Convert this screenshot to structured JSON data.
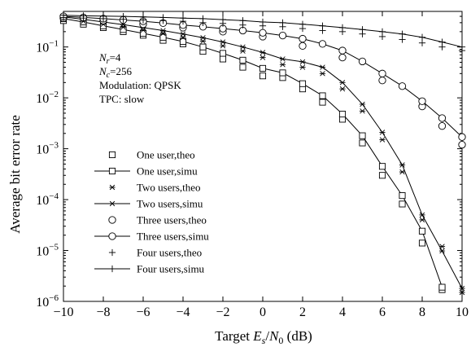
{
  "chart_data": {
    "type": "line",
    "xlabel_parts": {
      "pre": "Target ",
      "E": "E",
      "s": "s",
      "slash": "/",
      "N": "N",
      "zero": "0",
      "post": " (dB)"
    },
    "ylabel": "Average bit error rate",
    "xlim": [
      -10,
      10
    ],
    "ylim": [
      1e-06,
      0.5
    ],
    "yscale": "log",
    "grid": false,
    "legend_position": "lower-left",
    "x_ticks": [
      "−10",
      "−8",
      "−6",
      "−4",
      "−2",
      "0",
      "2",
      "4",
      "6",
      "8",
      "10"
    ],
    "y_ticks": [
      {
        "base": "10",
        "exp": "−1",
        "value": 0.1
      },
      {
        "base": "10",
        "exp": "−2",
        "value": 0.01
      },
      {
        "base": "10",
        "exp": "−3",
        "value": 0.001
      },
      {
        "base": "10",
        "exp": "−4",
        "value": 0.0001
      },
      {
        "base": "10",
        "exp": "−5",
        "value": 1e-05
      },
      {
        "base": "10",
        "exp": "−6",
        "value": 1e-06
      }
    ],
    "annotation": {
      "nr": {
        "N": "N",
        "sub": "r",
        "val": "=4"
      },
      "nc": {
        "N": "N",
        "sub": "c",
        "val": "=256"
      },
      "modulation": "Modulation: QPSK",
      "tpc": "TPC: slow"
    },
    "series": [
      {
        "name": "One user,theo",
        "marker": "square",
        "line": false,
        "x": [
          -10,
          -9,
          -8,
          -7,
          -6,
          -5,
          -4,
          -3,
          -2,
          -1,
          0,
          1,
          2,
          3,
          4,
          5,
          6,
          7,
          8,
          9
        ],
        "y": [
          0.33,
          0.28,
          0.24,
          0.2,
          0.17,
          0.135,
          0.115,
          0.082,
          0.058,
          0.04,
          0.027,
          0.025,
          0.015,
          0.0082,
          0.0038,
          0.0013,
          0.0003,
          8.2e-05,
          1.4e-05,
          1.7e-06
        ]
      },
      {
        "name": "One user,simu",
        "marker": "square",
        "line": true,
        "x": [
          -10,
          -9,
          -8,
          -7,
          -6,
          -5,
          -4,
          -3,
          -2,
          -1,
          0,
          1,
          2,
          3,
          4,
          5,
          6,
          7,
          8,
          9
        ],
        "y": [
          0.36,
          0.31,
          0.26,
          0.22,
          0.185,
          0.155,
          0.128,
          0.1,
          0.075,
          0.055,
          0.038,
          0.031,
          0.019,
          0.011,
          0.0048,
          0.0018,
          0.00045,
          0.00012,
          2.4e-05,
          1.9e-06
        ]
      },
      {
        "name": "Two users,theo",
        "marker": "asterisk",
        "line": false,
        "x": [
          -10,
          -9,
          -8,
          -7,
          -6,
          -5,
          -4,
          -3,
          -2,
          -1,
          0,
          1,
          2,
          3,
          4,
          5,
          6,
          7,
          8,
          9,
          10
        ],
        "y": [
          0.36,
          0.32,
          0.28,
          0.245,
          0.215,
          0.185,
          0.155,
          0.13,
          0.105,
          0.083,
          0.062,
          0.045,
          0.04,
          0.03,
          0.015,
          0.0055,
          0.0015,
          0.00035,
          4e-05,
          1.2e-05,
          1.5e-06
        ]
      },
      {
        "name": "Two users,simu",
        "marker": "asterisk",
        "line": true,
        "x": [
          -10,
          -9,
          -8,
          -7,
          -6,
          -5,
          -4,
          -3,
          -2,
          -1,
          0,
          1,
          2,
          3,
          4,
          5,
          6,
          7,
          8,
          9,
          10
        ],
        "y": [
          0.39,
          0.35,
          0.31,
          0.275,
          0.24,
          0.21,
          0.18,
          0.152,
          0.125,
          0.1,
          0.078,
          0.058,
          0.051,
          0.04,
          0.02,
          0.0075,
          0.0021,
          0.00048,
          5e-05,
          9.8e-06,
          1.8e-06
        ]
      },
      {
        "name": "Three users,theo",
        "marker": "circle",
        "line": false,
        "x": [
          -10,
          -8,
          -6,
          -4,
          -2,
          0,
          2,
          4,
          6,
          8,
          9,
          10
        ],
        "y": [
          0.37,
          0.33,
          0.28,
          0.24,
          0.2,
          0.16,
          0.105,
          0.062,
          0.022,
          0.0068,
          0.0028,
          0.0012
        ]
      },
      {
        "name": "Three users,simu",
        "marker": "circle",
        "line": true,
        "x": [
          -10,
          -9,
          -8,
          -7,
          -6,
          -5,
          -4,
          -3,
          -2,
          -1,
          0,
          1,
          2,
          3,
          4,
          5,
          6,
          7,
          8,
          9,
          10
        ],
        "y": [
          0.4,
          0.38,
          0.36,
          0.34,
          0.32,
          0.295,
          0.27,
          0.25,
          0.23,
          0.21,
          0.19,
          0.168,
          0.145,
          0.115,
          0.085,
          0.052,
          0.03,
          0.017,
          0.0086,
          0.004,
          0.0017
        ]
      },
      {
        "name": "Four users,theo",
        "marker": "plus",
        "line": false,
        "x": [
          -10,
          -9,
          -8,
          -7,
          -6,
          -5,
          -4,
          -3,
          -2,
          -1,
          0,
          1,
          2,
          3,
          4,
          5,
          6,
          7,
          8,
          9,
          10
        ],
        "y": [
          0.38,
          0.37,
          0.36,
          0.35,
          0.34,
          0.33,
          0.32,
          0.3,
          0.29,
          0.27,
          0.26,
          0.25,
          0.23,
          0.21,
          0.2,
          0.18,
          0.16,
          0.14,
          0.12,
          0.1,
          0.085
        ]
      },
      {
        "name": "Four users,simu",
        "marker": "plus",
        "line": true,
        "x": [
          -10,
          -9,
          -8,
          -7,
          -6,
          -5,
          -4,
          -3,
          -2,
          -1,
          0,
          1,
          2,
          3,
          4,
          5,
          6,
          7,
          8,
          9,
          10
        ],
        "y": [
          0.42,
          0.41,
          0.405,
          0.4,
          0.39,
          0.38,
          0.37,
          0.36,
          0.345,
          0.33,
          0.31,
          0.3,
          0.28,
          0.26,
          0.24,
          0.22,
          0.2,
          0.18,
          0.155,
          0.125,
          0.1
        ]
      }
    ]
  }
}
